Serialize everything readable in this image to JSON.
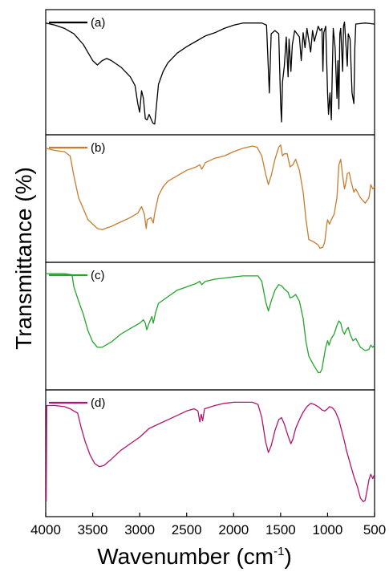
{
  "chart_data": {
    "type": "line",
    "stacked_panels": true,
    "xlabel": {
      "main": "Wavenumber (cm",
      "sup": "-1",
      "close": ")"
    },
    "ylabel": "Transmittance (%)",
    "xlim": [
      4000,
      500
    ],
    "x_ticks": [
      4000,
      3500,
      3000,
      2500,
      2000,
      1500,
      1000,
      500
    ],
    "panels": [
      {
        "label": "(a)",
        "color": "#000000",
        "points": [
          [
            4000,
            0.95
          ],
          [
            3900,
            0.93
          ],
          [
            3800,
            0.9
          ],
          [
            3700,
            0.85
          ],
          [
            3600,
            0.75
          ],
          [
            3500,
            0.6
          ],
          [
            3450,
            0.56
          ],
          [
            3400,
            0.6
          ],
          [
            3350,
            0.62
          ],
          [
            3300,
            0.6
          ],
          [
            3200,
            0.54
          ],
          [
            3100,
            0.45
          ],
          [
            3050,
            0.37
          ],
          [
            3020,
            0.2
          ],
          [
            3000,
            0.12
          ],
          [
            2980,
            0.32
          ],
          [
            2960,
            0.25
          ],
          [
            2940,
            0.06
          ],
          [
            2920,
            0.05
          ],
          [
            2900,
            0.1
          ],
          [
            2880,
            0.06
          ],
          [
            2860,
            0.02
          ],
          [
            2840,
            0.01
          ],
          [
            2800,
            0.38
          ],
          [
            2750,
            0.5
          ],
          [
            2700,
            0.58
          ],
          [
            2600,
            0.67
          ],
          [
            2500,
            0.73
          ],
          [
            2400,
            0.78
          ],
          [
            2300,
            0.83
          ],
          [
            2200,
            0.86
          ],
          [
            2100,
            0.9
          ],
          [
            2000,
            0.93
          ],
          [
            1900,
            0.95
          ],
          [
            1800,
            0.95
          ],
          [
            1700,
            0.95
          ],
          [
            1650,
            0.93
          ],
          [
            1620,
            0.3
          ],
          [
            1600,
            0.85
          ],
          [
            1560,
            0.88
          ],
          [
            1520,
            0.85
          ],
          [
            1500,
            0.2
          ],
          [
            1490,
            0.03
          ],
          [
            1480,
            0.4
          ],
          [
            1460,
            0.55
          ],
          [
            1440,
            0.82
          ],
          [
            1420,
            0.45
          ],
          [
            1410,
            0.8
          ],
          [
            1390,
            0.5
          ],
          [
            1375,
            0.75
          ],
          [
            1350,
            0.88
          ],
          [
            1300,
            0.82
          ],
          [
            1280,
            0.6
          ],
          [
            1260,
            0.86
          ],
          [
            1240,
            0.72
          ],
          [
            1220,
            0.9
          ],
          [
            1180,
            0.68
          ],
          [
            1160,
            0.88
          ],
          [
            1140,
            0.78
          ],
          [
            1100,
            0.92
          ],
          [
            1080,
            0.88
          ],
          [
            1060,
            0.9
          ],
          [
            1050,
            0.5
          ],
          [
            1040,
            0.86
          ],
          [
            1020,
            0.92
          ],
          [
            1000,
            0.3
          ],
          [
            990,
            0.1
          ],
          [
            975,
            0.3
          ],
          [
            960,
            0.05
          ],
          [
            950,
            0.5
          ],
          [
            940,
            0.9
          ],
          [
            920,
            0.72
          ],
          [
            900,
            0.25
          ],
          [
            890,
            0.6
          ],
          [
            880,
            0.15
          ],
          [
            870,
            0.85
          ],
          [
            860,
            0.9
          ],
          [
            840,
            0.5
          ],
          [
            830,
            0.92
          ],
          [
            820,
            0.96
          ],
          [
            790,
            0.55
          ],
          [
            780,
            0.85
          ],
          [
            760,
            0.8
          ],
          [
            740,
            0.3
          ],
          [
            720,
            0.2
          ],
          [
            710,
            0.72
          ],
          [
            700,
            0.94
          ],
          [
            600,
            0.95
          ],
          [
            500,
            0.94
          ]
        ]
      },
      {
        "label": "(b)",
        "color": "#c87c2e",
        "points": [
          [
            4000,
            0.95
          ],
          [
            3900,
            0.93
          ],
          [
            3800,
            0.92
          ],
          [
            3740,
            0.88
          ],
          [
            3700,
            0.7
          ],
          [
            3650,
            0.5
          ],
          [
            3550,
            0.3
          ],
          [
            3450,
            0.22
          ],
          [
            3400,
            0.21
          ],
          [
            3300,
            0.24
          ],
          [
            3200,
            0.28
          ],
          [
            3100,
            0.32
          ],
          [
            3020,
            0.36
          ],
          [
            2980,
            0.42
          ],
          [
            2950,
            0.35
          ],
          [
            2930,
            0.22
          ],
          [
            2920,
            0.3
          ],
          [
            2880,
            0.32
          ],
          [
            2855,
            0.27
          ],
          [
            2840,
            0.36
          ],
          [
            2800,
            0.52
          ],
          [
            2750,
            0.6
          ],
          [
            2700,
            0.65
          ],
          [
            2600,
            0.7
          ],
          [
            2500,
            0.75
          ],
          [
            2400,
            0.78
          ],
          [
            2360,
            0.8
          ],
          [
            2340,
            0.76
          ],
          [
            2300,
            0.82
          ],
          [
            2200,
            0.86
          ],
          [
            2100,
            0.88
          ],
          [
            2000,
            0.92
          ],
          [
            1900,
            0.95
          ],
          [
            1800,
            0.97
          ],
          [
            1750,
            0.96
          ],
          [
            1700,
            0.88
          ],
          [
            1660,
            0.72
          ],
          [
            1630,
            0.62
          ],
          [
            1600,
            0.7
          ],
          [
            1560,
            0.85
          ],
          [
            1520,
            0.96
          ],
          [
            1500,
            0.98
          ],
          [
            1480,
            0.88
          ],
          [
            1460,
            0.9
          ],
          [
            1430,
            0.9
          ],
          [
            1400,
            0.78
          ],
          [
            1370,
            0.8
          ],
          [
            1340,
            0.85
          ],
          [
            1300,
            0.75
          ],
          [
            1260,
            0.55
          ],
          [
            1230,
            0.3
          ],
          [
            1200,
            0.12
          ],
          [
            1150,
            0.1
          ],
          [
            1100,
            0.07
          ],
          [
            1080,
            0.04
          ],
          [
            1050,
            0.05
          ],
          [
            1030,
            0.1
          ],
          [
            1010,
            0.25
          ],
          [
            1000,
            0.3
          ],
          [
            980,
            0.26
          ],
          [
            960,
            0.3
          ],
          [
            930,
            0.35
          ],
          [
            900,
            0.5
          ],
          [
            880,
            0.8
          ],
          [
            860,
            0.85
          ],
          [
            840,
            0.7
          ],
          [
            820,
            0.58
          ],
          [
            800,
            0.66
          ],
          [
            790,
            0.72
          ],
          [
            770,
            0.73
          ],
          [
            750,
            0.65
          ],
          [
            720,
            0.55
          ],
          [
            700,
            0.58
          ],
          [
            650,
            0.5
          ],
          [
            600,
            0.45
          ],
          [
            560,
            0.5
          ],
          [
            540,
            0.62
          ],
          [
            520,
            0.58
          ],
          [
            500,
            0.6
          ]
        ]
      },
      {
        "label": "(c)",
        "color": "#22a52b",
        "points": [
          [
            4000,
            0.97
          ],
          [
            3900,
            0.97
          ],
          [
            3800,
            0.97
          ],
          [
            3720,
            0.96
          ],
          [
            3700,
            0.85
          ],
          [
            3650,
            0.72
          ],
          [
            3600,
            0.6
          ],
          [
            3550,
            0.45
          ],
          [
            3500,
            0.35
          ],
          [
            3450,
            0.3
          ],
          [
            3400,
            0.3
          ],
          [
            3300,
            0.35
          ],
          [
            3200,
            0.42
          ],
          [
            3100,
            0.47
          ],
          [
            3000,
            0.52
          ],
          [
            2960,
            0.55
          ],
          [
            2940,
            0.52
          ],
          [
            2925,
            0.46
          ],
          [
            2900,
            0.52
          ],
          [
            2870,
            0.58
          ],
          [
            2855,
            0.52
          ],
          [
            2830,
            0.62
          ],
          [
            2800,
            0.7
          ],
          [
            2700,
            0.76
          ],
          [
            2600,
            0.82
          ],
          [
            2500,
            0.85
          ],
          [
            2400,
            0.88
          ],
          [
            2360,
            0.9
          ],
          [
            2340,
            0.87
          ],
          [
            2300,
            0.9
          ],
          [
            2200,
            0.92
          ],
          [
            2100,
            0.93
          ],
          [
            2000,
            0.94
          ],
          [
            1900,
            0.95
          ],
          [
            1800,
            0.95
          ],
          [
            1740,
            0.95
          ],
          [
            1700,
            0.9
          ],
          [
            1660,
            0.72
          ],
          [
            1630,
            0.63
          ],
          [
            1600,
            0.72
          ],
          [
            1560,
            0.82
          ],
          [
            1520,
            0.87
          ],
          [
            1490,
            0.86
          ],
          [
            1460,
            0.83
          ],
          [
            1420,
            0.8
          ],
          [
            1400,
            0.75
          ],
          [
            1370,
            0.76
          ],
          [
            1340,
            0.78
          ],
          [
            1300,
            0.72
          ],
          [
            1260,
            0.56
          ],
          [
            1230,
            0.35
          ],
          [
            1200,
            0.22
          ],
          [
            1150,
            0.14
          ],
          [
            1100,
            0.07
          ],
          [
            1080,
            0.07
          ],
          [
            1060,
            0.1
          ],
          [
            1040,
            0.2
          ],
          [
            1020,
            0.3
          ],
          [
            1000,
            0.36
          ],
          [
            985,
            0.32
          ],
          [
            960,
            0.38
          ],
          [
            930,
            0.42
          ],
          [
            900,
            0.5
          ],
          [
            880,
            0.54
          ],
          [
            860,
            0.52
          ],
          [
            840,
            0.45
          ],
          [
            820,
            0.42
          ],
          [
            800,
            0.46
          ],
          [
            780,
            0.48
          ],
          [
            760,
            0.42
          ],
          [
            730,
            0.36
          ],
          [
            700,
            0.38
          ],
          [
            650,
            0.3
          ],
          [
            600,
            0.27
          ],
          [
            560,
            0.28
          ],
          [
            540,
            0.32
          ],
          [
            520,
            0.3
          ],
          [
            500,
            0.32
          ]
        ]
      },
      {
        "label": "(d)",
        "color": "#b3136e",
        "points": [
          [
            3995,
            0.05
          ],
          [
            3990,
            0.93
          ],
          [
            3900,
            0.93
          ],
          [
            3800,
            0.92
          ],
          [
            3740,
            0.9
          ],
          [
            3700,
            0.88
          ],
          [
            3660,
            0.86
          ],
          [
            3620,
            0.72
          ],
          [
            3580,
            0.6
          ],
          [
            3530,
            0.48
          ],
          [
            3480,
            0.4
          ],
          [
            3430,
            0.37
          ],
          [
            3380,
            0.38
          ],
          [
            3300,
            0.44
          ],
          [
            3200,
            0.52
          ],
          [
            3100,
            0.58
          ],
          [
            3000,
            0.64
          ],
          [
            2900,
            0.72
          ],
          [
            2800,
            0.76
          ],
          [
            2700,
            0.8
          ],
          [
            2600,
            0.84
          ],
          [
            2500,
            0.88
          ],
          [
            2420,
            0.9
          ],
          [
            2380,
            0.88
          ],
          [
            2360,
            0.78
          ],
          [
            2345,
            0.85
          ],
          [
            2330,
            0.79
          ],
          [
            2310,
            0.9
          ],
          [
            2200,
            0.93
          ],
          [
            2100,
            0.95
          ],
          [
            2000,
            0.96
          ],
          [
            1900,
            0.96
          ],
          [
            1800,
            0.96
          ],
          [
            1740,
            0.94
          ],
          [
            1700,
            0.82
          ],
          [
            1660,
            0.6
          ],
          [
            1630,
            0.5
          ],
          [
            1600,
            0.56
          ],
          [
            1560,
            0.7
          ],
          [
            1520,
            0.8
          ],
          [
            1490,
            0.82
          ],
          [
            1460,
            0.76
          ],
          [
            1420,
            0.65
          ],
          [
            1390,
            0.58
          ],
          [
            1370,
            0.62
          ],
          [
            1340,
            0.72
          ],
          [
            1300,
            0.8
          ],
          [
            1260,
            0.87
          ],
          [
            1220,
            0.92
          ],
          [
            1180,
            0.95
          ],
          [
            1140,
            0.94
          ],
          [
            1100,
            0.92
          ],
          [
            1060,
            0.89
          ],
          [
            1030,
            0.88
          ],
          [
            1000,
            0.9
          ],
          [
            980,
            0.92
          ],
          [
            950,
            0.91
          ],
          [
            920,
            0.88
          ],
          [
            880,
            0.8
          ],
          [
            850,
            0.7
          ],
          [
            820,
            0.6
          ],
          [
            800,
            0.52
          ],
          [
            760,
            0.4
          ],
          [
            720,
            0.28
          ],
          [
            680,
            0.18
          ],
          [
            650,
            0.08
          ],
          [
            620,
            0.05
          ],
          [
            600,
            0.06
          ],
          [
            580,
            0.15
          ],
          [
            560,
            0.25
          ],
          [
            540,
            0.3
          ],
          [
            520,
            0.26
          ],
          [
            500,
            0.3
          ]
        ]
      }
    ]
  }
}
